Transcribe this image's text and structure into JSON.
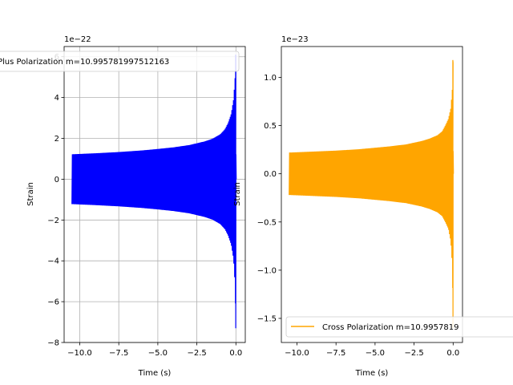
{
  "chart_data": [
    {
      "type": "line",
      "offset_text": "1e−22",
      "xlabel": "Time (s)",
      "ylabel": "Strain",
      "xlim": [
        -11.0,
        0.6
      ],
      "ylim": [
        -8,
        6.5
      ],
      "xticks": [
        -10.0,
        -7.5,
        -5.0,
        -2.5,
        0.0
      ],
      "xtick_labels": [
        "−10.0",
        "−7.5",
        "−5.0",
        "−2.5",
        "0.0"
      ],
      "yticks": [
        -8,
        -6,
        -4,
        -2,
        0,
        2,
        4,
        6
      ],
      "ytick_labels": [
        "−8",
        "−6",
        "−4",
        "−2",
        "0",
        "2",
        "4",
        "6"
      ],
      "grid": true,
      "legend_position": "top",
      "series": [
        {
          "name": "Plus Polarization m=10.995781997512163",
          "color": "#0000ff",
          "envelope_x": [
            -10.5,
            -9.0,
            -7.5,
            -6.0,
            -5.0,
            -4.0,
            -3.0,
            -2.0,
            -1.5,
            -1.0,
            -0.7,
            -0.5,
            -0.3,
            -0.15,
            -0.05,
            -0.01,
            0.0
          ],
          "envelope_upper": [
            1.22,
            1.27,
            1.33,
            1.41,
            1.48,
            1.56,
            1.67,
            1.85,
            1.98,
            2.2,
            2.45,
            2.75,
            3.2,
            3.9,
            5.0,
            6.0,
            6.1
          ],
          "envelope_lower": [
            -1.22,
            -1.27,
            -1.33,
            -1.41,
            -1.48,
            -1.56,
            -1.67,
            -1.85,
            -1.98,
            -2.2,
            -2.45,
            -2.75,
            -3.2,
            -3.9,
            -5.2,
            -6.9,
            -7.3
          ],
          "peak_max": 6.1,
          "peak_min": -7.3
        }
      ]
    },
    {
      "type": "line",
      "offset_text": "1e−23",
      "xlabel": "Time (s)",
      "ylabel": "Strain",
      "xlim": [
        -11.0,
        0.6
      ],
      "ylim": [
        -1.75,
        1.32
      ],
      "xticks": [
        -10.0,
        -7.5,
        -5.0,
        -2.5,
        0.0
      ],
      "xtick_labels": [
        "−10.0",
        "−7.5",
        "−5.0",
        "−2.5",
        "0.0"
      ],
      "yticks": [
        -1.5,
        -1.0,
        -0.5,
        0.0,
        0.5,
        1.0
      ],
      "ytick_labels": [
        "−1.5",
        "−1.0",
        "−0.5",
        "0.0",
        "0.5",
        "1.0"
      ],
      "grid": false,
      "legend_position": "bottom",
      "series": [
        {
          "name": "Cross Polarization m=10.9957819",
          "color": "#ffa500",
          "envelope_x": [
            -10.5,
            -9.0,
            -7.5,
            -6.0,
            -5.0,
            -4.0,
            -3.0,
            -2.0,
            -1.5,
            -1.0,
            -0.7,
            -0.5,
            -0.3,
            -0.15,
            -0.05,
            -0.01,
            0.0
          ],
          "envelope_upper": [
            0.22,
            0.23,
            0.24,
            0.255,
            0.27,
            0.285,
            0.305,
            0.34,
            0.365,
            0.4,
            0.44,
            0.5,
            0.57,
            0.68,
            0.88,
            1.1,
            1.18
          ],
          "envelope_lower": [
            -0.22,
            -0.23,
            -0.24,
            -0.255,
            -0.27,
            -0.285,
            -0.305,
            -0.34,
            -0.365,
            -0.4,
            -0.44,
            -0.5,
            -0.57,
            -0.7,
            -0.95,
            -1.4,
            -1.6
          ],
          "peak_max": 1.18,
          "peak_min": -1.6
        }
      ]
    }
  ]
}
